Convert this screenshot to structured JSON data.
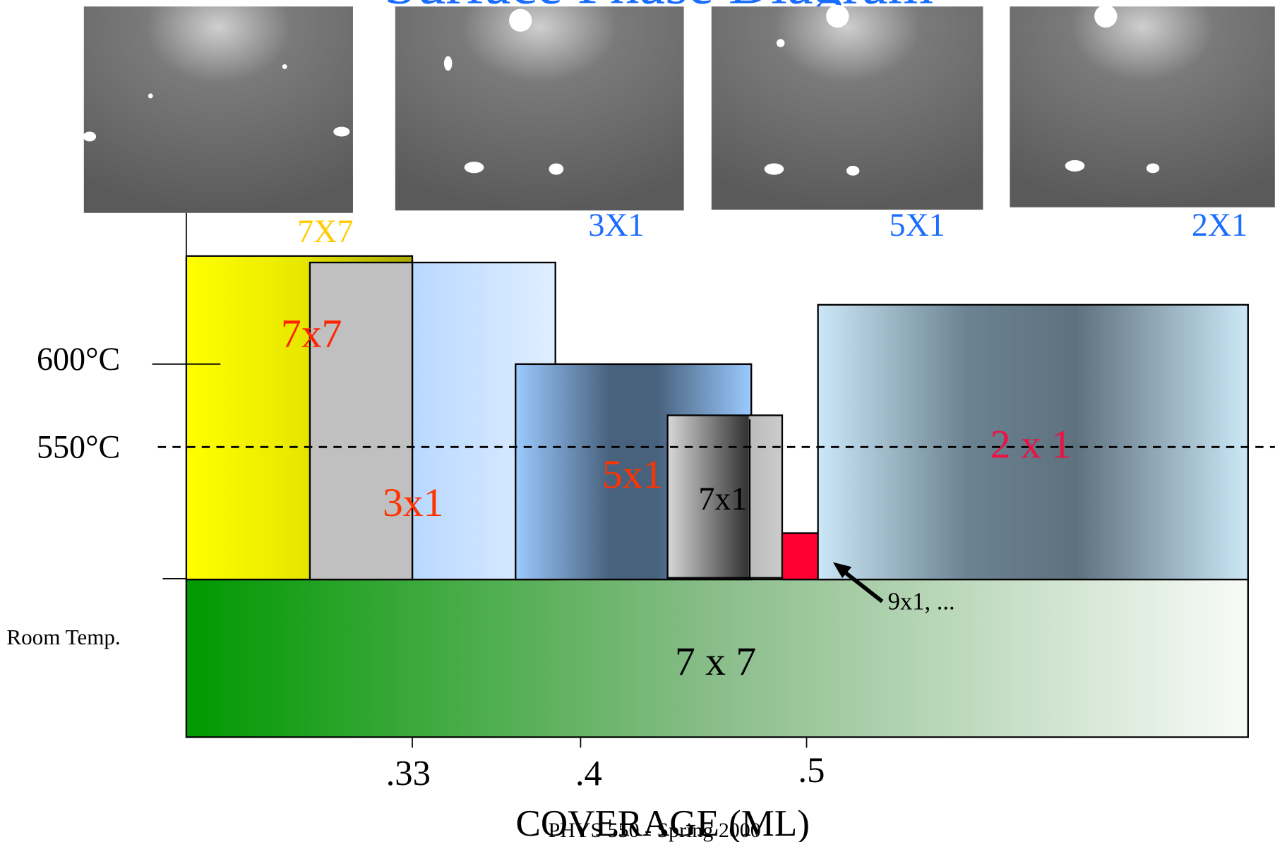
{
  "header": {
    "title": "Surface Phase Diagram"
  },
  "images": [
    {
      "label": "7X7"
    },
    {
      "label": "3X1"
    },
    {
      "label": "5X1"
    },
    {
      "label": "2X1"
    }
  ],
  "axis": {
    "temperatures": [
      "600°C",
      "550°C",
      "Room Temp."
    ],
    "coverage_ticks": [
      ".33",
      ".4",
      ".5"
    ],
    "x_label": "COVERAGE (ML)"
  },
  "phases": [
    {
      "label": "7x7"
    },
    {
      "label": "3x1"
    },
    {
      "label": "5x1"
    },
    {
      "label": "7x1"
    },
    {
      "label": "9x1, ..."
    },
    {
      "label": "2 x 1"
    },
    {
      "label": "7 x 7"
    }
  ],
  "footer": {
    "text": "PHYS 550 - Spring 2000"
  }
}
